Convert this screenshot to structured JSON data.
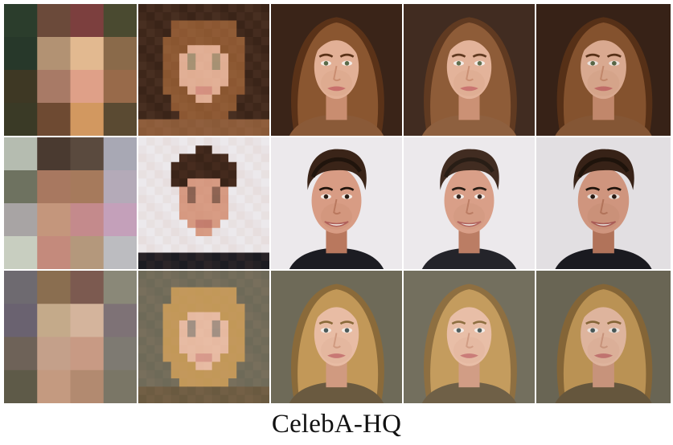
{
  "caption": "CelebA-HQ",
  "columns": [
    "input-4x4",
    "input-16x16",
    "output-sample-1",
    "output-sample-2",
    "ground-truth"
  ],
  "rows": [
    {
      "id": "woman-auburn",
      "background": "#3a2418",
      "hair": "#8a5630",
      "hair_dark": "#5a3218",
      "skin": "#e2b096",
      "skin_shadow": "#c98d70",
      "lips": "#c8706c",
      "eyes": "#5a6a48",
      "clothing": "#8a5a38",
      "mosaic4": [
        "#2b3d2c",
        "#6b4a3a",
        "#7c3f3e",
        "#4a4a30",
        "#27382a",
        "#b29273",
        "#e2b990",
        "#8a6a4a",
        "#3e3824",
        "#a87a66",
        "#dfa088",
        "#986a4a",
        "#3a3a26",
        "#6e4a32",
        "#d29860",
        "#5a4a32"
      ]
    },
    {
      "id": "man-dark",
      "background": "#ece9ec",
      "hair": "#3a2418",
      "hair_dark": "#20140c",
      "skin": "#d89c84",
      "skin_shadow": "#b9785e",
      "lips": "#b0605a",
      "eyes": "#2a1c14",
      "clothing": "#1c1c22",
      "mosaic4": [
        "#b5bcb0",
        "#4a3a30",
        "#5a4a3e",
        "#a8a8b4",
        "#6e7260",
        "#a87860",
        "#a67a5c",
        "#b4aab8",
        "#a8a4a4",
        "#c4967c",
        "#c48a8c",
        "#c4a0ba",
        "#c8cec0",
        "#c48a7c",
        "#b4987c",
        "#bcbcc0"
      ]
    },
    {
      "id": "woman-blonde",
      "background": "#6e6a58",
      "hair": "#c29858",
      "hair_dark": "#8a6a3a",
      "skin": "#e8bca4",
      "skin_shadow": "#d09a80",
      "lips": "#c87874",
      "eyes": "#4a5a5a",
      "clothing": "#6a5a40",
      "mosaic4": [
        "#6e6a70",
        "#8a6e50",
        "#7c5a50",
        "#8a8878",
        "#6a6270",
        "#c4aa8a",
        "#d4b49c",
        "#7e7276",
        "#6e6258",
        "#c4a08a",
        "#c89a84",
        "#7e7a72",
        "#5e5a48",
        "#c49a80",
        "#b28a70",
        "#7a7666"
      ]
    }
  ]
}
